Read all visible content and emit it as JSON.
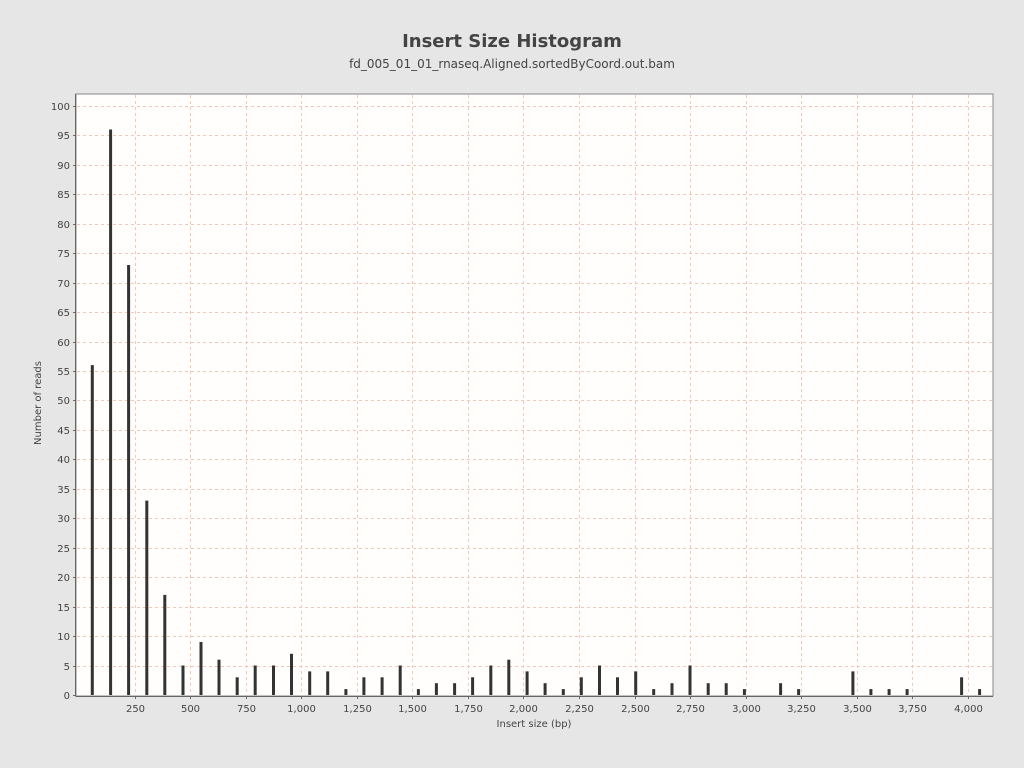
{
  "chart_data": {
    "type": "bar",
    "title": "Insert Size Histogram",
    "subtitle": "fd_005_01_01_rnaseq.Aligned.sortedByCoord.out.bam",
    "xlabel": "Insert size (bp)",
    "ylabel": "Number of reads",
    "xlim": [
      0,
      4090
    ],
    "ylim": [
      0,
      101
    ],
    "x_ticks": [
      250,
      500,
      750,
      1000,
      1250,
      1500,
      1750,
      2000,
      2250,
      2500,
      2750,
      3000,
      3250,
      3500,
      3750,
      4000
    ],
    "x_tick_labels": [
      "250",
      "500",
      "750",
      "1,000",
      "1,250",
      "1,500",
      "1,750",
      "2,000",
      "2,250",
      "2,500",
      "2,750",
      "3,000",
      "3,250",
      "3,500",
      "3,750",
      "4,000"
    ],
    "y_ticks": [
      0,
      5,
      10,
      15,
      20,
      25,
      30,
      35,
      40,
      45,
      50,
      55,
      60,
      65,
      70,
      75,
      80,
      85,
      90,
      95,
      100
    ],
    "grid": true,
    "legend": "none",
    "colors": {
      "bar": "#333333",
      "grid": "#f2c9b8",
      "plot_bg": "#fffefc",
      "page_bg": "#e6e6e6"
    },
    "x": [
      60,
      142,
      223,
      305,
      386,
      468,
      549,
      630,
      712,
      793,
      875,
      956,
      1038,
      1119,
      1201,
      1282,
      1364,
      1445,
      1527,
      1608,
      1690,
      1771,
      1853,
      1934,
      2016,
      2097,
      2179,
      2260,
      2342,
      2423,
      2505,
      2586,
      2668,
      2749,
      2831,
      2912,
      2994,
      3157,
      3238,
      3482,
      3563,
      3645,
      3726,
      3971,
      4052
    ],
    "values": [
      56,
      96,
      73,
      33,
      17,
      5,
      9,
      6,
      3,
      5,
      5,
      7,
      4,
      4,
      1,
      3,
      3,
      5,
      1,
      2,
      2,
      3,
      5,
      6,
      4,
      2,
      1,
      3,
      5,
      3,
      4,
      1,
      2,
      5,
      2,
      2,
      1,
      2,
      1,
      4,
      1,
      1,
      1,
      3,
      1
    ]
  }
}
